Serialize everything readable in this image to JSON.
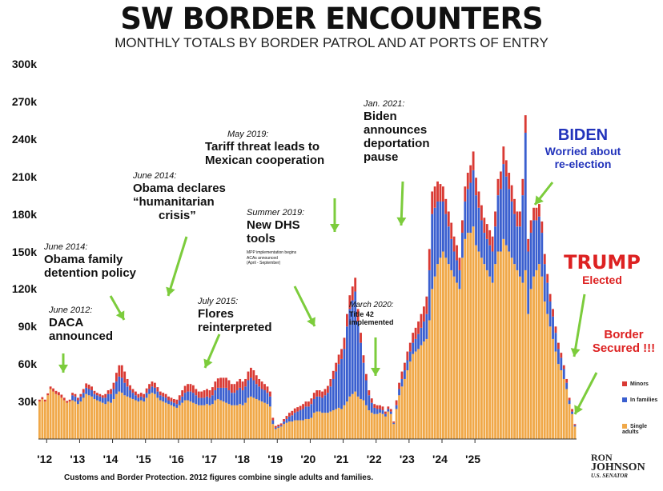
{
  "title": "SW BORDER ENCOUNTERS",
  "subtitle": "MONTHLY TOTALS BY BORDER PATROL AND AT PORTS OF ENTRY",
  "source_note": "Customs and Border Protection. 2012 figures combine single adults and families.",
  "logo": {
    "line1": "RON",
    "line2": "JOHNSON",
    "line3": "U.S. SENATOR"
  },
  "colors": {
    "single_adults": "#f0a848",
    "in_families": "#3a5fcf",
    "minors": "#d93a34",
    "arrows": "#7ccc3c",
    "biden": "#2233bb",
    "trump": "#dd2222"
  },
  "annotations": [
    {
      "date": "June 2012:",
      "text": [
        "DACA",
        "announced"
      ]
    },
    {
      "date": "June 2014:",
      "text": [
        "Obama family",
        "detention policy"
      ]
    },
    {
      "date": "June 2014:",
      "text": [
        "Obama declares",
        "“humanitarian",
        "crisis”"
      ]
    },
    {
      "date": "July 2015:",
      "text": [
        "Flores",
        "reinterpreted"
      ]
    },
    {
      "date": "May 2019:",
      "text": [
        "Tariff threat leads to",
        "Mexican cooperation"
      ]
    },
    {
      "date": "Summer 2019:",
      "text": [
        "New DHS",
        "tools"
      ],
      "small": [
        "MPP implementation begins",
        "ACAs announced",
        "(April - September)"
      ]
    },
    {
      "date": "March 2020:",
      "text": [
        "Title 42",
        "implemented"
      ]
    },
    {
      "date": "Jan. 2021:",
      "text": [
        "Biden",
        "announces",
        "deportation",
        "pause"
      ]
    }
  ],
  "callouts": {
    "biden": {
      "title": "BIDEN",
      "text": [
        "Worried about",
        "re-election"
      ]
    },
    "trump": {
      "title": "TRUMP",
      "text": "Elected"
    },
    "border": {
      "text": [
        "Border",
        "Secured !!!"
      ]
    }
  },
  "chart_data": {
    "type": "bar",
    "stacked": true,
    "title": "SW BORDER ENCOUNTERS",
    "subtitle": "MONTHLY TOTALS BY BORDER PATROL AND AT PORTS OF ENTRY",
    "ylim": [
      0,
      300000
    ],
    "y_ticks": [
      30000,
      60000,
      90000,
      120000,
      150000,
      180000,
      210000,
      240000,
      270000,
      300000
    ],
    "y_tick_labels": [
      "30k",
      "60k",
      "90k",
      "120k",
      "150k",
      "180k",
      "210k",
      "240k",
      "270k",
      "300k"
    ],
    "x_tick_labels": [
      "'12",
      "'13",
      "'14",
      "'15",
      "'16",
      "'17",
      "'18",
      "'19",
      "'20",
      "'21",
      "'22",
      "'23",
      "'24",
      "'25"
    ],
    "start": "2011-10",
    "series": [
      {
        "name": "Single adults",
        "color": "#f0a848",
        "values": [
          30000,
          32000,
          30000,
          35000,
          40000,
          38000,
          36000,
          35000,
          33000,
          31000,
          29000,
          30000,
          31000,
          30000,
          28000,
          30000,
          33000,
          36000,
          35000,
          34000,
          32000,
          31000,
          30000,
          29000,
          28000,
          30000,
          29000,
          32000,
          36000,
          38000,
          37000,
          35000,
          34000,
          33000,
          32000,
          31000,
          30000,
          31000,
          30000,
          33000,
          36000,
          37000,
          36000,
          33000,
          31000,
          30000,
          29000,
          28000,
          27000,
          26000,
          25000,
          27000,
          29000,
          31000,
          31000,
          30000,
          29000,
          28000,
          27000,
          27000,
          27000,
          28000,
          27000,
          28000,
          31000,
          32000,
          31000,
          30000,
          29000,
          28000,
          27000,
          27000,
          27000,
          28000,
          27000,
          29000,
          33000,
          34000,
          33000,
          32000,
          31000,
          30000,
          29000,
          28000,
          26000,
          12000,
          8000,
          9000,
          10000,
          12000,
          13000,
          14000,
          14000,
          15000,
          15000,
          15000,
          15000,
          16000,
          16000,
          17000,
          21000,
          22000,
          22000,
          21000,
          21000,
          21000,
          22000,
          23000,
          24000,
          25000,
          24000,
          27000,
          30000,
          34000,
          36000,
          38000,
          34000,
          32000,
          31000,
          27000,
          23000,
          21000,
          20000,
          20000,
          21000,
          20000,
          18000,
          22000,
          20000,
          12000,
          24000,
          35000,
          42000,
          48000,
          55000,
          62000,
          68000,
          70000,
          72000,
          75000,
          78000,
          80000,
          95000,
          120000,
          130000,
          140000,
          145000,
          150000,
          145000,
          140000,
          135000,
          130000,
          125000,
          120000,
          145000,
          160000,
          165000,
          165000,
          170000,
          155000,
          150000,
          145000,
          140000,
          135000,
          130000,
          125000,
          140000,
          150000,
          150000,
          160000,
          155000,
          150000,
          145000,
          140000,
          135000,
          130000,
          125000,
          135000,
          100000,
          120000,
          130000,
          135000,
          140000,
          130000,
          110000,
          100000,
          90000,
          80000,
          70000,
          60000,
          55000,
          48000,
          40000,
          28000,
          20000,
          10000
        ]
      },
      {
        "name": "In families",
        "color": "#3a5fcf",
        "values": [
          0,
          0,
          0,
          0,
          0,
          0,
          0,
          0,
          0,
          0,
          0,
          0,
          4000,
          4000,
          3000,
          4000,
          4000,
          5000,
          5000,
          5000,
          4000,
          4000,
          4000,
          4000,
          5000,
          6000,
          7000,
          8000,
          10000,
          12000,
          12000,
          10000,
          8000,
          6000,
          5000,
          4000,
          3000,
          3000,
          3000,
          4000,
          4000,
          5000,
          5000,
          5000,
          4000,
          4000,
          4000,
          3000,
          3000,
          3000,
          3000,
          4000,
          5000,
          6000,
          7000,
          8000,
          8000,
          7000,
          6000,
          6000,
          6000,
          6000,
          6000,
          7000,
          8000,
          9000,
          10000,
          11000,
          12000,
          11000,
          10000,
          10000,
          12000,
          13000,
          12000,
          13000,
          14000,
          15000,
          14000,
          12000,
          11000,
          10000,
          10000,
          9000,
          8000,
          3000,
          1000,
          1000,
          1000,
          2000,
          3000,
          4000,
          5000,
          6000,
          7000,
          8000,
          9000,
          10000,
          10000,
          11000,
          11000,
          12000,
          12000,
          12000,
          14000,
          16000,
          20000,
          25000,
          30000,
          35000,
          40000,
          45000,
          60000,
          70000,
          75000,
          80000,
          60000,
          45000,
          30000,
          20000,
          12000,
          8000,
          5000,
          4000,
          3000,
          3000,
          2000,
          2000,
          2000,
          1000,
          3000,
          5000,
          6000,
          7000,
          8000,
          8000,
          9000,
          10000,
          12000,
          14000,
          16000,
          20000,
          40000,
          60000,
          55000,
          50000,
          45000,
          40000,
          35000,
          30000,
          25000,
          20000,
          18000,
          15000,
          20000,
          30000,
          35000,
          40000,
          45000,
          40000,
          35000,
          30000,
          25000,
          25000,
          25000,
          25000,
          30000,
          45000,
          50000,
          60000,
          55000,
          50000,
          45000,
          40000,
          35000,
          40000,
          70000,
          110000,
          50000,
          45000,
          45000,
          40000,
          38000,
          35000,
          30000,
          25000,
          20000,
          18000,
          15000,
          12000,
          10000,
          8000,
          5000,
          3000,
          2000,
          1000
        ]
      },
      {
        "name": "Minors",
        "color": "#d93a34",
        "values": [
          1500,
          1500,
          1500,
          1500,
          2000,
          2500,
          2500,
          2500,
          2500,
          2000,
          1500,
          1500,
          2000,
          2000,
          2000,
          2000,
          3000,
          3500,
          3500,
          3000,
          2500,
          2000,
          2000,
          2000,
          3000,
          3000,
          4000,
          5000,
          7000,
          9000,
          10000,
          9000,
          6000,
          4000,
          3000,
          3000,
          3000,
          3000,
          3000,
          3500,
          4000,
          4000,
          4000,
          3500,
          3000,
          3000,
          3000,
          3000,
          3000,
          3000,
          3500,
          4000,
          5000,
          5500,
          6000,
          6000,
          6000,
          5000,
          5000,
          5000,
          6000,
          6000,
          6000,
          6500,
          7000,
          7500,
          8000,
          8000,
          8000,
          8000,
          7000,
          7000,
          7000,
          7000,
          7000,
          6000,
          7000,
          8000,
          8000,
          7000,
          6000,
          6000,
          5000,
          5000,
          4000,
          2000,
          1500,
          1500,
          1500,
          2000,
          2500,
          3000,
          3500,
          3500,
          3500,
          3500,
          4000,
          4000,
          4000,
          4500,
          5000,
          5000,
          5000,
          5000,
          5000,
          5500,
          6000,
          6500,
          7000,
          7500,
          8000,
          9000,
          10000,
          11000,
          11000,
          11000,
          10000,
          8000,
          6000,
          5000,
          4000,
          3500,
          3000,
          3000,
          3000,
          3000,
          2000,
          2000,
          2000,
          1000,
          4000,
          5000,
          6000,
          6000,
          7000,
          7000,
          8000,
          9000,
          10000,
          11000,
          12000,
          14000,
          17000,
          18000,
          17000,
          16000,
          14000,
          12000,
          12000,
          12000,
          13000,
          12000,
          12000,
          10000,
          10000,
          12000,
          13000,
          14000,
          15000,
          14000,
          13000,
          12000,
          12000,
          12000,
          12000,
          12000,
          12000,
          13000,
          14000,
          14000,
          13000,
          13000,
          13000,
          12000,
          12000,
          12000,
          13000,
          14000,
          10000,
          10000,
          10000,
          10000,
          10000,
          9000,
          8000,
          7000,
          6000,
          6000,
          5000,
          5000,
          4000,
          3000,
          3000,
          2000,
          2000,
          1000
        ]
      }
    ],
    "legend": {
      "position": "right",
      "entries": [
        "Minors",
        "In families",
        "Single adults"
      ]
    }
  }
}
